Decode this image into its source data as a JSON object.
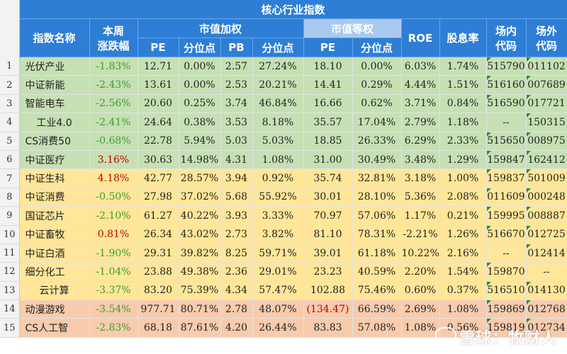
{
  "title": "核心行业指数",
  "headers": {
    "name": "指数名称",
    "weekly": [
      "本周",
      "涨跌幅"
    ],
    "mcap_weight": "市值加权",
    "equal_weight": "市值等权",
    "roe": "ROE",
    "dividend": "股息率",
    "onsite": [
      "场内",
      "代码"
    ],
    "offsite": [
      "场外",
      "代码"
    ],
    "pe": "PE",
    "pb": "PB",
    "pct": "分位点"
  },
  "rows": [
    {
      "num": "1",
      "name": "光伏产业",
      "chg": "-1.83%",
      "pe": "12.71",
      "pe_pct": "0.00%",
      "pb": "2.57",
      "pb_pct": "27.24%",
      "epe": "18.10",
      "epe_pct": "0.00%",
      "roe": "6.03%",
      "div": "1.74%",
      "onsite": "515790",
      "offsite": "011102",
      "color": "g"
    },
    {
      "num": "2",
      "name": "中证新能",
      "chg": "-2.43%",
      "pe": "13.61",
      "pe_pct": "0.00%",
      "pb": "2.53",
      "pb_pct": "20.21%",
      "epe": "14.41",
      "epe_pct": "0.29%",
      "roe": "4.44%",
      "div": "1.51%",
      "onsite": "516160",
      "offsite": "007689",
      "color": "g"
    },
    {
      "num": "3",
      "name": "智能电车",
      "chg": "-2.56%",
      "pe": "20.60",
      "pe_pct": "0.25%",
      "pb": "3.74",
      "pb_pct": "46.84%",
      "epe": "16.66",
      "epe_pct": "0.62%",
      "roe": "3.71%",
      "div": "0.84%",
      "onsite": "516590",
      "offsite": "017721",
      "color": "g"
    },
    {
      "num": "4",
      "name": "工业4.0",
      "chg": "-2.41%",
      "pe": "24.64",
      "pe_pct": "0.38%",
      "pb": "3.53",
      "pb_pct": "8.18%",
      "epe": "35.57",
      "epe_pct": "17.04%",
      "roe": "2.79%",
      "div": "1.18%",
      "onsite": "--",
      "offsite": "150315",
      "color": "g",
      "center": true
    },
    {
      "num": "5",
      "name": "CS消费50",
      "chg": "-0.68%",
      "pe": "22.78",
      "pe_pct": "5.94%",
      "pb": "5.03",
      "pb_pct": "5.03%",
      "epe": "18.85",
      "epe_pct": "26.33%",
      "roe": "6.29%",
      "div": "2.33%",
      "onsite": "515650",
      "offsite": "008975",
      "color": "g"
    },
    {
      "num": "6",
      "name": "中证医疗",
      "chg": "3.16%",
      "pe": "30.63",
      "pe_pct": "14.98%",
      "pb": "4.31",
      "pb_pct": "1.08%",
      "epe": "31.00",
      "epe_pct": "30.49%",
      "roe": "3.48%",
      "div": "1.29%",
      "onsite": "159847",
      "offsite": "162412",
      "color": "g"
    },
    {
      "num": "7",
      "name": "中证生科",
      "chg": "4.18%",
      "pe": "42.77",
      "pe_pct": "28.57%",
      "pb": "3.94",
      "pb_pct": "0.92%",
      "epe": "35.74",
      "epe_pct": "32.81%",
      "roe": "3.18%",
      "div": "1.00%",
      "onsite": "159837",
      "offsite": "501009",
      "color": "y"
    },
    {
      "num": "8",
      "name": "中证消费",
      "chg": "-0.50%",
      "pe": "27.98",
      "pe_pct": "37.02%",
      "pb": "5.68",
      "pb_pct": "55.92%",
      "epe": "30.01",
      "epe_pct": "28.10%",
      "roe": "5.36%",
      "div": "2.08%",
      "onsite": "011609",
      "offsite": "000248",
      "color": "y"
    },
    {
      "num": "9",
      "name": "国证芯片",
      "chg": "-2.10%",
      "pe": "61.27",
      "pe_pct": "40.22%",
      "pb": "3.93",
      "pb_pct": "3.33%",
      "epe": "70.97",
      "epe_pct": "57.06%",
      "roe": "1.17%",
      "div": "0.21%",
      "onsite": "159995",
      "offsite": "008887",
      "color": "y"
    },
    {
      "num": "10",
      "name": "中证畜牧",
      "chg": "0.81%",
      "pe": "26.34",
      "pe_pct": "43.02%",
      "pb": "2.73",
      "pb_pct": "3.82%",
      "epe": "81.10",
      "epe_pct": "78.31%",
      "roe": "-2.21%",
      "div": "1.26%",
      "onsite": "516670",
      "offsite": "012725",
      "color": "y"
    },
    {
      "num": "11",
      "name": "中证白酒",
      "chg": "-1.90%",
      "pe": "29.31",
      "pe_pct": "39.82%",
      "pb": "8.25",
      "pb_pct": "59.71%",
      "epe": "39.01",
      "epe_pct": "61.18%",
      "roe": "10.22%",
      "div": "2.16%",
      "onsite": "--",
      "offsite": "012414",
      "color": "y"
    },
    {
      "num": "12",
      "name": "细分化工",
      "chg": "-1.04%",
      "pe": "23.88",
      "pe_pct": "49.38%",
      "pb": "2.36",
      "pb_pct": "29.01%",
      "epe": "23.23",
      "epe_pct": "40.59%",
      "roe": "2.20%",
      "div": "1.54%",
      "onsite": "159870",
      "offsite": "--",
      "color": "y"
    },
    {
      "num": "13",
      "name": "云计算",
      "chg": "-3.37%",
      "pe": "83.20",
      "pe_pct": "75.39%",
      "pb": "4.34",
      "pb_pct": "57.47%",
      "epe": "102.88",
      "epe_pct": "75.46%",
      "roe": "0.60%",
      "div": "0.37%",
      "onsite": "516510",
      "offsite": "014130",
      "color": "y",
      "center": true
    },
    {
      "num": "14",
      "name": "动漫游戏",
      "chg": "-3.54%",
      "pe": "977.71",
      "pe_pct": "80.71%",
      "pb": "2.78",
      "pb_pct": "48.07%",
      "epe": "(134.47)",
      "epe_pct": "66.59%",
      "roe": "2.69%",
      "div": "1.08%",
      "onsite": "159869",
      "offsite": "012768",
      "color": "o",
      "epe_red": true
    },
    {
      "num": "15",
      "name": "CS人工智",
      "chg": "-2.83%",
      "pe": "68.18",
      "pe_pct": "87.61%",
      "pb": "4.20",
      "pb_pct": "26.44%",
      "epe": "83.83",
      "epe_pct": "57.08%",
      "roe": "1.08%",
      "div": "0.56%",
      "onsite": "159819",
      "offsite": "012734",
      "color": "o"
    }
  ],
  "watermark": "雪球：牧财人",
  "watermark_icon": "snowball-logo-icon",
  "colors": {
    "green_band": "#c6e0b4",
    "yellow_band": "#ffe699",
    "orange_band": "#f8cbad",
    "header": "#2e7ed6",
    "header_light": "#a9c9ee",
    "negative": "#3a9d2f",
    "positive": "#c00000"
  }
}
